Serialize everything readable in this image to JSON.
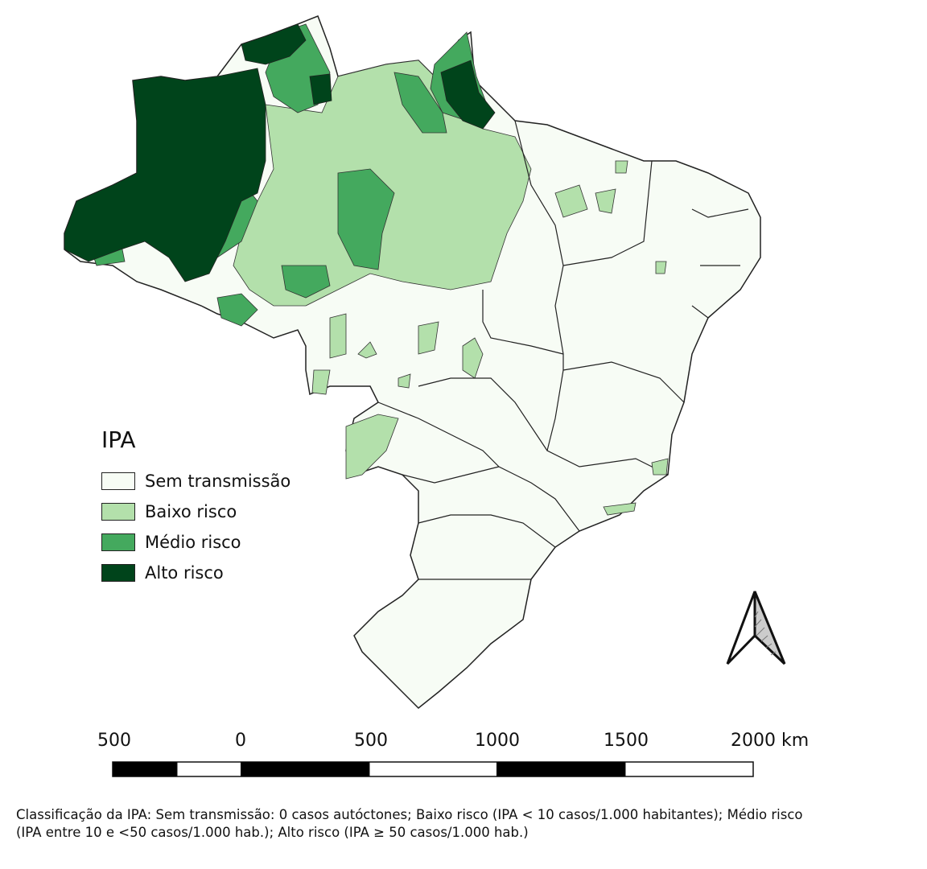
{
  "legend": {
    "title": "IPA",
    "items": [
      {
        "label": "Sem transmissão",
        "color": "#f7fcf5"
      },
      {
        "label": "Baixo risco",
        "color": "#b3e0ab"
      },
      {
        "label": "Médio risco",
        "color": "#44a95e"
      },
      {
        "label": "Alto risco",
        "color": "#00441b"
      }
    ]
  },
  "scale_bar": {
    "labels": [
      "500",
      "0",
      "500",
      "1000",
      "1500",
      "2000 km"
    ]
  },
  "north_arrow": {
    "icon": "north-arrow-icon"
  },
  "caption": {
    "line1": "Classificação da IPA: Sem transmissão: 0 casos autóctones; Baixo risco (IPA < 10 casos/1.000 habitantes); Médio risco",
    "line2": "(IPA entre 10 e <50 casos/1.000 hab.); Alto risco (IPA ≥ 50 casos/1.000 hab.)"
  }
}
